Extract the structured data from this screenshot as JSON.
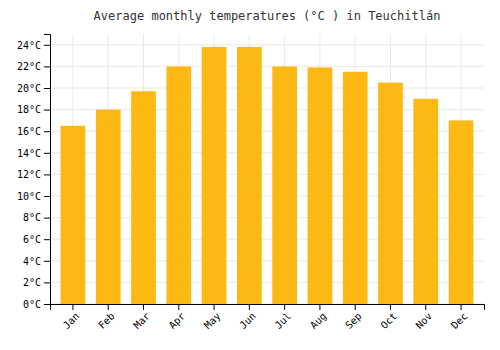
{
  "chart_data": {
    "type": "bar",
    "title": "Average monthly temperatures (°C ) in Teuchitlán",
    "categories": [
      "Jan",
      "Feb",
      "Mar",
      "Apr",
      "May",
      "Jun",
      "Jul",
      "Aug",
      "Sep",
      "Oct",
      "Nov",
      "Dec"
    ],
    "values": [
      16.5,
      18.0,
      19.7,
      22.0,
      23.8,
      23.8,
      22.0,
      21.9,
      21.5,
      20.5,
      19.0,
      17.0
    ],
    "color": "#FDB913",
    "ylim": [
      0,
      25
    ],
    "yticks": [
      {
        "value": 0,
        "label": "0°C"
      },
      {
        "value": 2,
        "label": "2°C"
      },
      {
        "value": 4,
        "label": "4°C"
      },
      {
        "value": 6,
        "label": "6°C"
      },
      {
        "value": 8,
        "label": "8°C"
      },
      {
        "value": 10,
        "label": "10°C"
      },
      {
        "value": 12,
        "label": "12°C"
      },
      {
        "value": 14,
        "label": "14°C"
      },
      {
        "value": 16,
        "label": "16°C"
      },
      {
        "value": 18,
        "label": "18°C"
      },
      {
        "value": 20,
        "label": "20°C"
      },
      {
        "value": 22,
        "label": "22°C"
      },
      {
        "value": 24,
        "label": "24°C"
      }
    ],
    "grid": true
  }
}
